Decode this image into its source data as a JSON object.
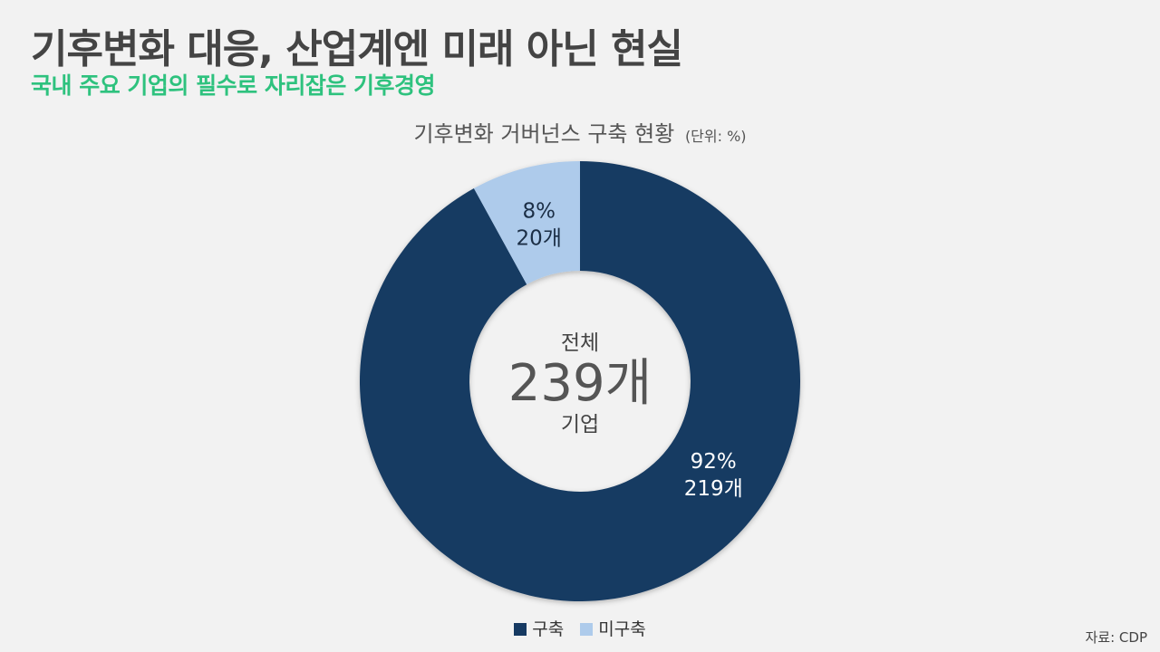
{
  "header": {
    "title": "기후변화 대응, 산업계엔 미래 아닌 현실",
    "subtitle": "국내 주요 기업의 필수로 자리잡은 기후경영"
  },
  "chart_data": {
    "type": "pie",
    "title": "기후변화 거버넌스 구축 현황",
    "unit_note": "(단위: %)",
    "center": {
      "top_label": "전체",
      "total": "239개",
      "bottom_label": "기업"
    },
    "slices": [
      {
        "name": "구축",
        "percent": 92,
        "percent_label": "92%",
        "count_label": "219개",
        "value": 219,
        "color": "#163a62"
      },
      {
        "name": "미구축",
        "percent": 8,
        "percent_label": "8%",
        "count_label": "20개",
        "value": 20,
        "color": "#aecbeb"
      }
    ],
    "legend_position": "bottom-center"
  },
  "footer": {
    "source": "자료: CDP"
  }
}
